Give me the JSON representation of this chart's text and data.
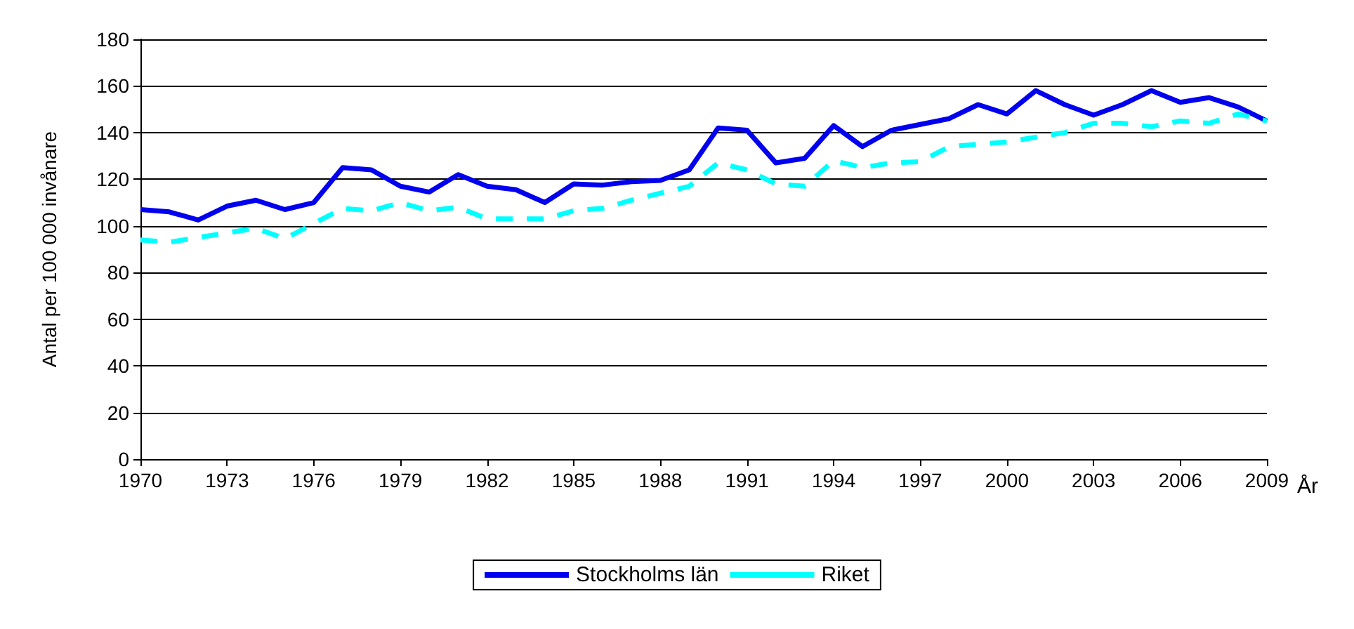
{
  "chart_data": {
    "type": "line",
    "xlabel": "År",
    "ylabel": "Antal per 100 000 invånare",
    "x": [
      1970,
      1971,
      1972,
      1973,
      1974,
      1975,
      1976,
      1977,
      1978,
      1979,
      1980,
      1981,
      1982,
      1983,
      1984,
      1985,
      1986,
      1987,
      1988,
      1989,
      1990,
      1991,
      1992,
      1993,
      1994,
      1995,
      1996,
      1997,
      1998,
      1999,
      2000,
      2001,
      2002,
      2003,
      2004,
      2005,
      2006,
      2007,
      2008,
      2009
    ],
    "series": [
      {
        "name": "Stockholms län",
        "color": "#0000ee",
        "line_style": "solid",
        "values": [
          107,
          106,
          102.5,
          108.5,
          111,
          107,
          110,
          125,
          124,
          117,
          114.5,
          122,
          117,
          115.5,
          110,
          118,
          117.5,
          119,
          119.5,
          124,
          142,
          141,
          127,
          129,
          143,
          134,
          141,
          143.5,
          146,
          152,
          148,
          158,
          152,
          147.5,
          152,
          158,
          153,
          155,
          151,
          145
        ]
      },
      {
        "name": "Riket",
        "color": "#00ffff",
        "line_style": "dashed",
        "values": [
          94,
          93,
          95,
          97,
          99,
          94.5,
          101,
          107.5,
          106.5,
          110,
          106.5,
          108,
          103,
          103,
          103,
          106.5,
          107.5,
          111,
          114,
          117,
          127,
          124,
          118,
          117,
          128,
          125,
          127,
          127.5,
          134,
          135,
          136,
          138,
          140,
          144,
          144,
          142.5,
          145,
          144,
          148,
          145
        ]
      }
    ],
    "xlim": [
      1970,
      2009
    ],
    "xticks": [
      1970,
      1973,
      1976,
      1979,
      1982,
      1985,
      1988,
      1991,
      1994,
      1997,
      2000,
      2003,
      2006,
      2009
    ],
    "ylim": [
      0,
      180
    ],
    "yticks": [
      0,
      20,
      40,
      60,
      80,
      100,
      120,
      140,
      160,
      180
    ],
    "grid": "y",
    "legend": "bottom",
    "marker": "none"
  }
}
